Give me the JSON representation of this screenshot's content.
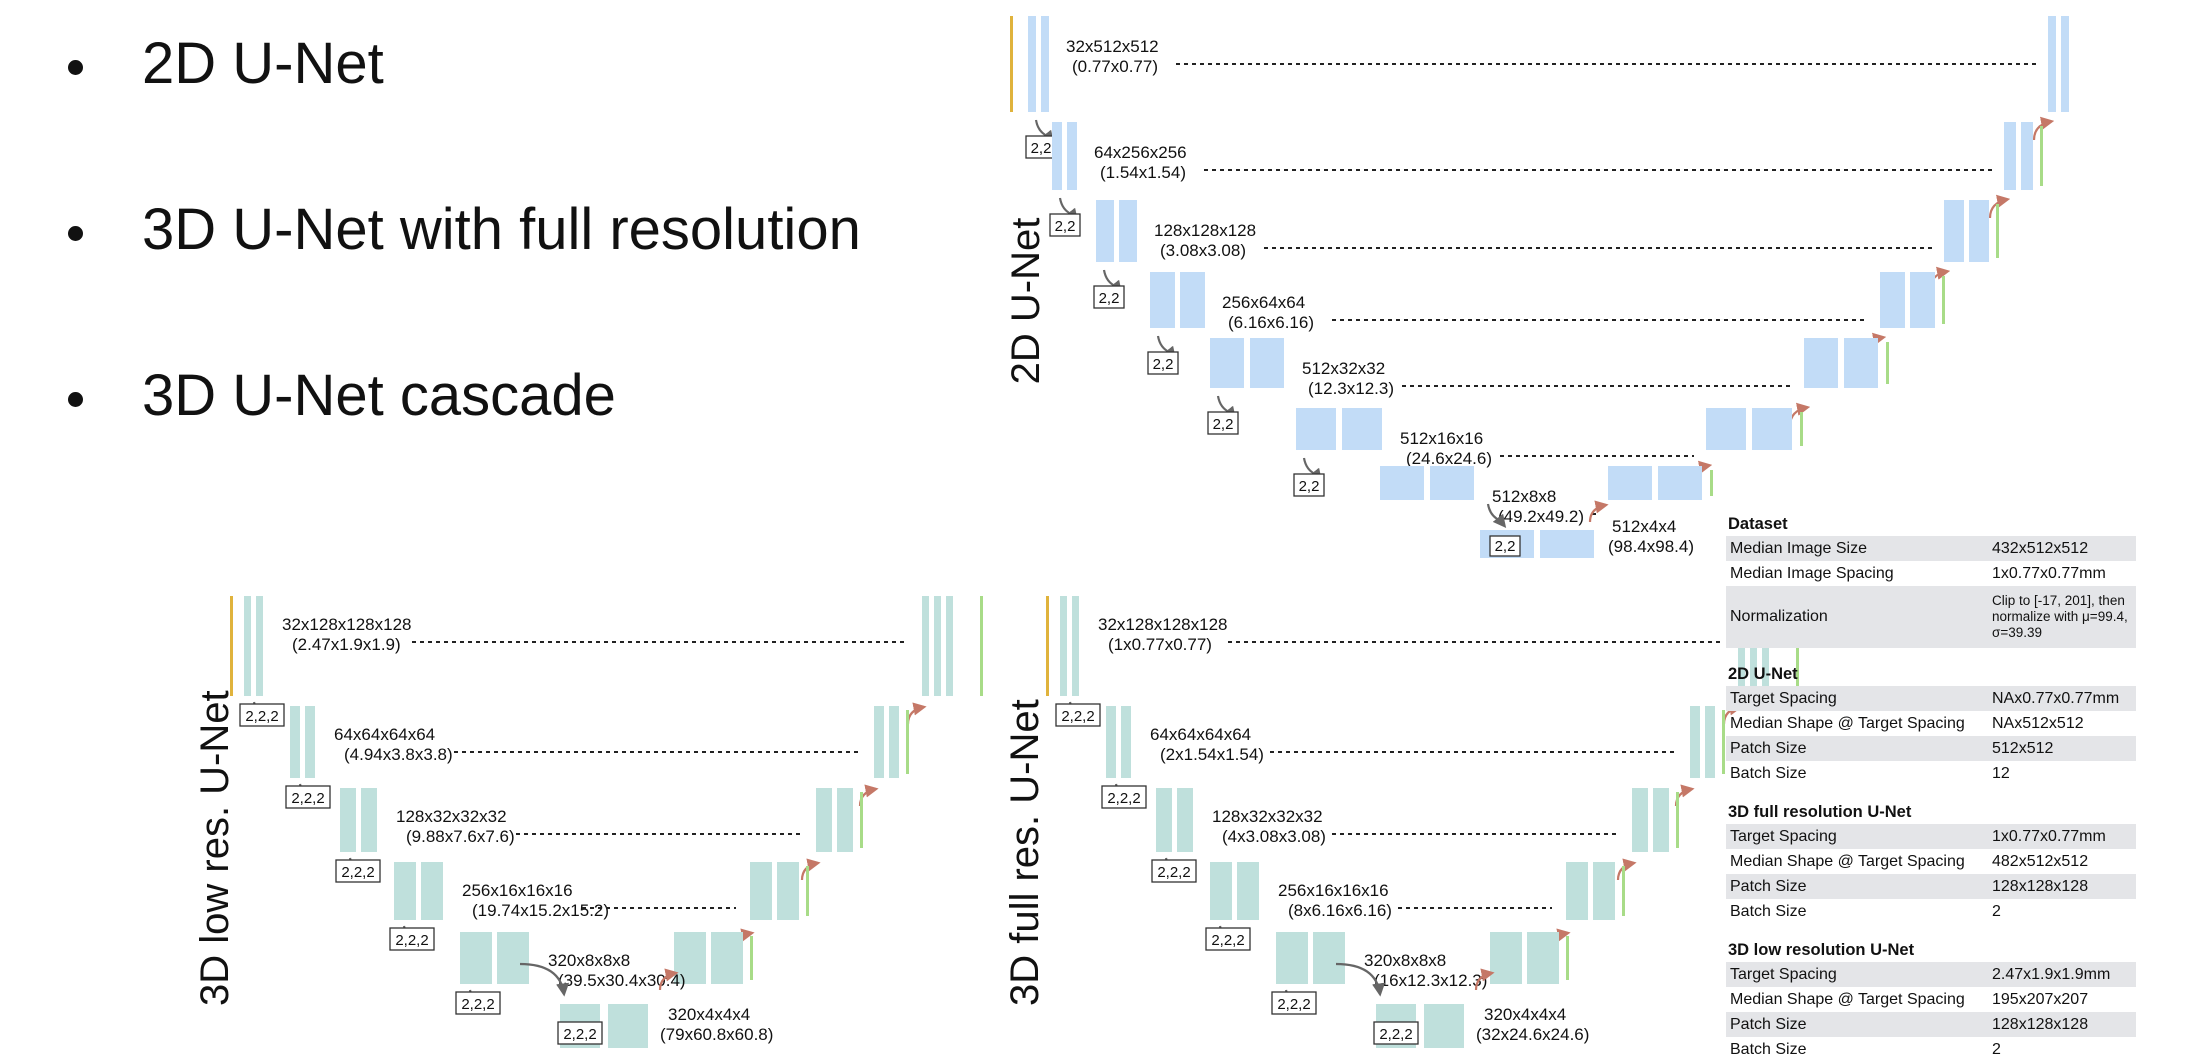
{
  "bullets": [
    "2D U-Net",
    "3D U-Net with full resolution",
    "3D U-Net cascade"
  ],
  "diagrams": {
    "unet2d": {
      "title": "2D U-Net",
      "pool_label": "2,2",
      "levels": [
        {
          "label": "32x512x512",
          "sublabel": "(0.77x0.77)"
        },
        {
          "label": "64x256x256",
          "sublabel": "(1.54x1.54)"
        },
        {
          "label": "128x128x128",
          "sublabel": "(3.08x3.08)"
        },
        {
          "label": "256x64x64",
          "sublabel": "(6.16x6.16)"
        },
        {
          "label": "512x32x32",
          "sublabel": "(12.3x12.3)"
        },
        {
          "label": "512x16x16",
          "sublabel": "(24.6x24.6)"
        },
        {
          "label": "512x8x8",
          "sublabel": "(49.2x49.2)"
        },
        {
          "label": "512x4x4",
          "sublabel": "(98.4x98.4)"
        }
      ]
    },
    "lowres": {
      "title": "3D low res. U-Net",
      "pool_label": "2,2,2",
      "levels": [
        {
          "label": "32x128x128x128",
          "sublabel": "(2.47x1.9x1.9)"
        },
        {
          "label": "64x64x64x64",
          "sublabel": "(4.94x3.8x3.8)"
        },
        {
          "label": "128x32x32x32",
          "sublabel": "(9.88x7.6x7.6)"
        },
        {
          "label": "256x16x16x16",
          "sublabel": "(19.74x15.2x15.2)"
        },
        {
          "label": "320x8x8x8",
          "sublabel": "(39.5x30.4x30.4)"
        },
        {
          "label": "320x4x4x4",
          "sublabel": "(79x60.8x60.8)"
        }
      ]
    },
    "fullres": {
      "title": "3D full res. U-Net",
      "pool_label": "2,2,2",
      "levels": [
        {
          "label": "32x128x128x128",
          "sublabel": "(1x0.77x0.77)"
        },
        {
          "label": "64x64x64x64",
          "sublabel": "(2x1.54x1.54)"
        },
        {
          "label": "128x32x32x32",
          "sublabel": "(4x3.08x3.08)"
        },
        {
          "label": "256x16x16x16",
          "sublabel": "(8x6.16x6.16)"
        },
        {
          "label": "320x8x8x8",
          "sublabel": "(16x12.3x12.3)"
        },
        {
          "label": "320x4x4x4",
          "sublabel": "(32x24.6x24.6)"
        }
      ]
    }
  },
  "tables": [
    {
      "title": "Dataset",
      "rows": [
        {
          "k": "Median Image Size",
          "v": "432x512x512"
        },
        {
          "k": "Median Image Spacing",
          "v": "1x0.77x0.77mm"
        },
        {
          "k": "Normalization",
          "v": "Clip to [-17, 201], then normalize with μ=99.4, σ=39.39"
        }
      ]
    },
    {
      "title": "2D U-Net",
      "rows": [
        {
          "k": "Target Spacing",
          "v": "NAx0.77x0.77mm"
        },
        {
          "k": "Median Shape @ Target Spacing",
          "v": "NAx512x512"
        },
        {
          "k": "Patch Size",
          "v": "512x512"
        },
        {
          "k": "Batch Size",
          "v": "12"
        }
      ]
    },
    {
      "title": "3D full resolution U-Net",
      "rows": [
        {
          "k": "Target Spacing",
          "v": "1x0.77x0.77mm"
        },
        {
          "k": "Median Shape @ Target Spacing",
          "v": "482x512x512"
        },
        {
          "k": "Patch Size",
          "v": "128x128x128"
        },
        {
          "k": "Batch Size",
          "v": "2"
        }
      ]
    },
    {
      "title": "3D low resolution U-Net",
      "rows": [
        {
          "k": "Target Spacing",
          "v": "2.47x1.9x1.9mm"
        },
        {
          "k": "Median Shape @ Target Spacing",
          "v": "195x207x207"
        },
        {
          "k": "Patch Size",
          "v": "128x128x128"
        },
        {
          "k": "Batch Size",
          "v": "2"
        }
      ]
    }
  ],
  "colors": {
    "unet2d_block": "#c2dcf7",
    "unet3d_block": "#bfe0dc",
    "input_bar": "#e0b33c",
    "output_bar": "#a8dc88",
    "down_arrow": "#666666",
    "up_arrow": "#c57867",
    "skip_line": "#222222"
  }
}
